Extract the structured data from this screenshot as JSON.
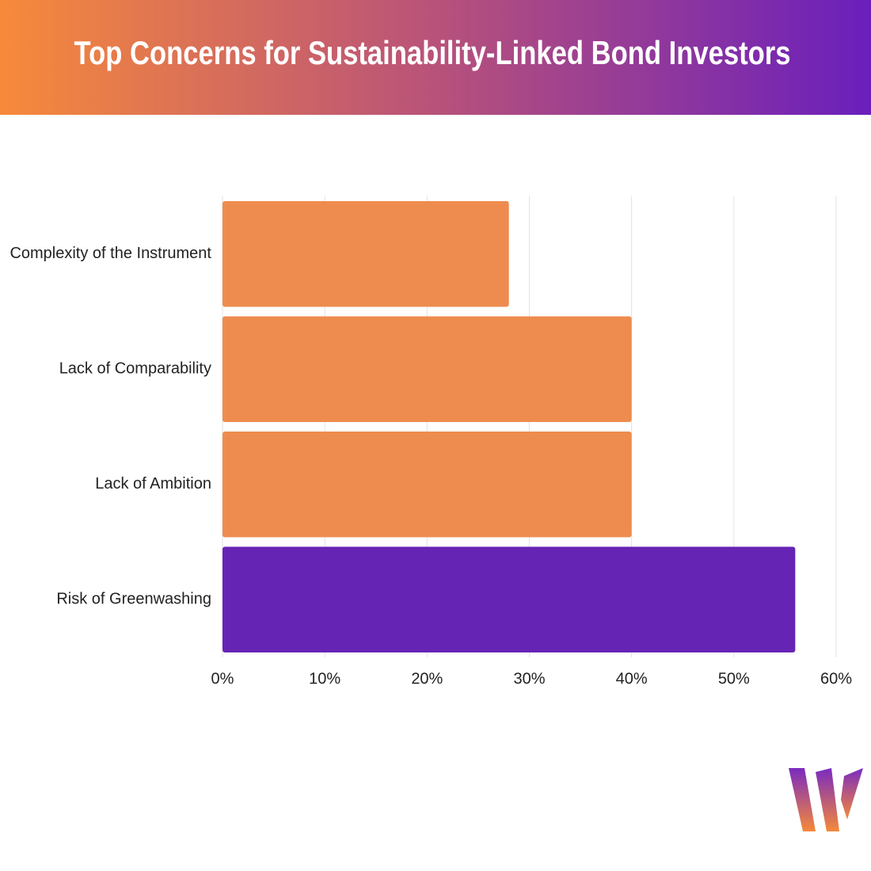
{
  "chart_data": {
    "type": "hbar",
    "title": "Top Concerns for Sustainability-Linked Bond Investors",
    "categories": [
      "Complexity of the Instrument",
      "Lack of Comparability",
      "Lack of Ambition",
      "Risk of Greenwashing"
    ],
    "values": [
      28,
      40,
      40,
      56
    ],
    "colors": [
      "#ee8c4f",
      "#ee8c4f",
      "#ee8c4f",
      "#6624b4"
    ],
    "xlim": [
      0,
      60
    ],
    "xticks": [
      {
        "value": 0,
        "label": "0%"
      },
      {
        "value": 10,
        "label": "10%"
      },
      {
        "value": 20,
        "label": "20%"
      },
      {
        "value": 30,
        "label": "30%"
      },
      {
        "value": 40,
        "label": "40%"
      },
      {
        "value": 50,
        "label": "50%"
      },
      {
        "value": 60,
        "label": "60%"
      }
    ],
    "grid": true
  }
}
